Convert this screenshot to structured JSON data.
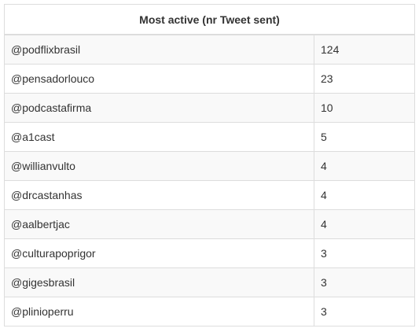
{
  "table": {
    "title": "Most active (nr Tweet sent)",
    "rows": [
      {
        "user": "@podflixbrasil",
        "count": "124"
      },
      {
        "user": "@pensadorlouco",
        "count": "23"
      },
      {
        "user": "@podcastafirma",
        "count": "10"
      },
      {
        "user": "@a1cast",
        "count": "5"
      },
      {
        "user": "@willianvulto",
        "count": "4"
      },
      {
        "user": "@drcastanhas",
        "count": "4"
      },
      {
        "user": "@aalbertjac",
        "count": "4"
      },
      {
        "user": "@culturapoprigor",
        "count": "3"
      },
      {
        "user": "@gigesbrasil",
        "count": "3"
      },
      {
        "user": "@plinioperru",
        "count": "3"
      }
    ]
  }
}
